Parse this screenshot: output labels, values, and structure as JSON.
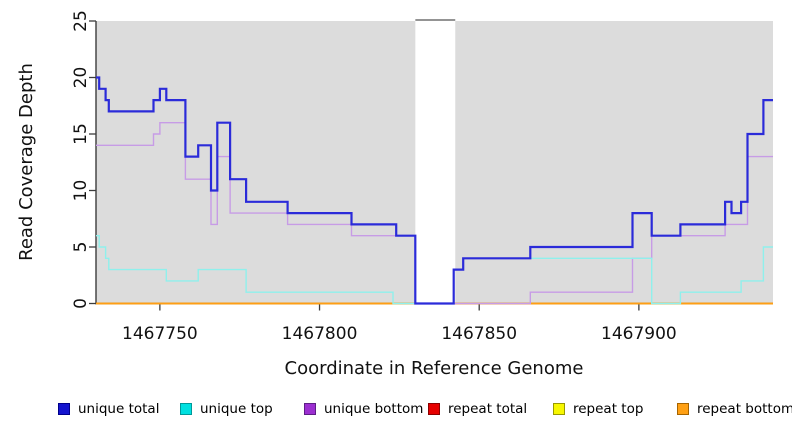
{
  "chart_data": {
    "type": "line",
    "variant": "step",
    "title": "",
    "xlabel": "Coordinate in Reference Genome",
    "ylabel": "Read Coverage Depth",
    "xlim": [
      1467730,
      1467942
    ],
    "ylim": [
      0,
      25
    ],
    "xticks": [
      1467750,
      1467800,
      1467850,
      1467900
    ],
    "yticks": [
      0,
      5,
      10,
      15,
      20,
      25
    ],
    "grid": false,
    "legend_position": "bottom",
    "panel_bg": "#dcdcdc",
    "axis_color": "#3c3c3c",
    "text_color": "#111111",
    "gap_region": {
      "from": 1467830,
      "to": 1467842.5,
      "fill": "#ffffff",
      "top_border": "#949494"
    },
    "series": [
      {
        "name": "unique total",
        "color": "#2B2BD9",
        "swatch": "#1414CF",
        "swatch_border": "#00008B",
        "width": 2.2,
        "z": 6,
        "steps": [
          [
            1467730,
            20
          ],
          [
            1467731,
            19
          ],
          [
            1467733,
            18
          ],
          [
            1467734,
            17
          ],
          [
            1467748,
            18
          ],
          [
            1467750,
            19
          ],
          [
            1467752,
            18
          ],
          [
            1467758,
            13
          ],
          [
            1467762,
            14
          ],
          [
            1467766,
            10
          ],
          [
            1467768,
            16
          ],
          [
            1467772,
            11
          ],
          [
            1467777,
            9
          ],
          [
            1467790,
            8
          ],
          [
            1467810,
            7
          ],
          [
            1467824,
            6
          ],
          [
            1467830,
            0
          ],
          [
            1467842,
            3
          ],
          [
            1467845,
            4
          ],
          [
            1467866,
            5
          ],
          [
            1467898,
            8
          ],
          [
            1467904,
            6
          ],
          [
            1467913,
            7
          ],
          [
            1467927,
            9
          ],
          [
            1467929,
            8
          ],
          [
            1467932,
            9
          ],
          [
            1467934,
            15
          ],
          [
            1467939,
            18
          ]
        ]
      },
      {
        "name": "unique top",
        "color": "#8FF0EC",
        "swatch": "#00E0E0",
        "swatch_border": "#009999",
        "width": 1.4,
        "z": 5,
        "steps": [
          [
            1467730,
            6
          ],
          [
            1467731,
            5
          ],
          [
            1467733,
            4
          ],
          [
            1467734,
            3
          ],
          [
            1467752,
            2
          ],
          [
            1467762,
            3
          ],
          [
            1467777,
            1
          ],
          [
            1467823,
            0
          ],
          [
            1467842,
            3
          ],
          [
            1467845,
            4
          ],
          [
            1467904,
            0
          ],
          [
            1467913,
            1
          ],
          [
            1467932,
            2
          ],
          [
            1467939,
            5
          ]
        ]
      },
      {
        "name": "unique bottom",
        "color": "#C79CE6",
        "swatch": "#9C2FD1",
        "swatch_border": "#5E1E86",
        "width": 1.4,
        "z": 4,
        "steps": [
          [
            1467730,
            14
          ],
          [
            1467748,
            15
          ],
          [
            1467750,
            16
          ],
          [
            1467758,
            11
          ],
          [
            1467766,
            7
          ],
          [
            1467768,
            13
          ],
          [
            1467772,
            8
          ],
          [
            1467790,
            7
          ],
          [
            1467810,
            6
          ],
          [
            1467830,
            0
          ],
          [
            1467866,
            1
          ],
          [
            1467898,
            4
          ],
          [
            1467904,
            6
          ],
          [
            1467927,
            7
          ],
          [
            1467934,
            13
          ]
        ]
      },
      {
        "name": "repeat total",
        "color": "#CC0000",
        "swatch": "#E60000",
        "swatch_border": "#8B0000",
        "width": 1.4,
        "z": 1,
        "steps": [
          [
            1467730,
            0
          ]
        ]
      },
      {
        "name": "repeat top",
        "color": "#EEEE00",
        "swatch": "#F7F700",
        "swatch_border": "#999900",
        "width": 1.4,
        "z": 2,
        "steps": [
          [
            1467730,
            0
          ]
        ]
      },
      {
        "name": "repeat bottom",
        "color": "#FF9E14",
        "swatch": "#FFA014",
        "swatch_border": "#A66400",
        "width": 1.7,
        "z": 3,
        "steps": [
          [
            1467730,
            0
          ]
        ]
      }
    ]
  }
}
